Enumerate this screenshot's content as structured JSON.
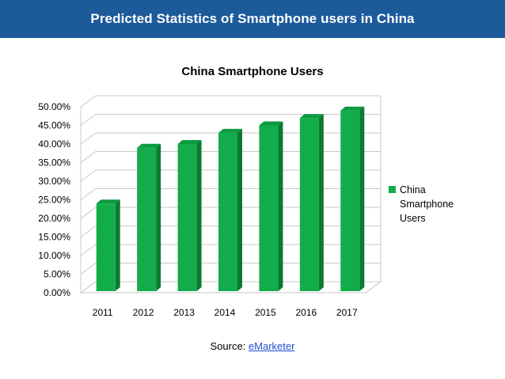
{
  "header": {
    "title": "Predicted Statistics of Smartphone users in China"
  },
  "source": {
    "label": "Source: ",
    "link_text": "eMarketer"
  },
  "colors": {
    "header_bg": "#1d5a9a",
    "bar_front": "#12ad4a",
    "bar_side": "#0a7a2f",
    "bar_top": "#0d9a3e",
    "grid": "#c8c8c8",
    "link": "#1f4fd0"
  },
  "chart_data": {
    "type": "bar",
    "title": "China Smartphone Users",
    "xlabel": "",
    "ylabel": "",
    "categories": [
      "2011",
      "2012",
      "2013",
      "2014",
      "2015",
      "2016",
      "2017"
    ],
    "series": [
      {
        "name": "China Smartphone Users",
        "values": [
          24.0,
          39.0,
          40.0,
          43.0,
          45.0,
          47.0,
          49.0
        ]
      }
    ],
    "ylim": [
      0,
      50
    ],
    "ytick_step": 5,
    "ytick_format": "percent_2dp",
    "grid": true,
    "legend_position": "right",
    "legend_lines": [
      "China",
      "Smartphone",
      "Users"
    ]
  }
}
